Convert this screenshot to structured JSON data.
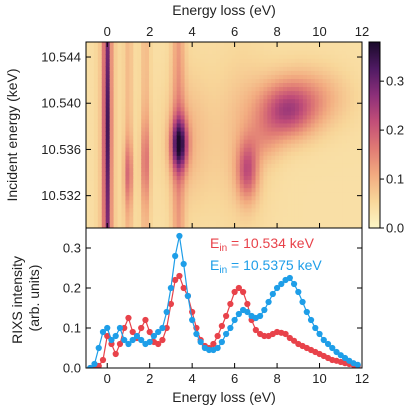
{
  "colors": {
    "series_red": "#e8424a",
    "series_blue": "#1e9ee8",
    "axis": "#000000"
  },
  "chart_data": [
    {
      "type": "heatmap",
      "top_xlabel": "Energy loss (eV)",
      "ylabel": "Incident energy (keV)",
      "xlim": [
        -1,
        12
      ],
      "ylim": [
        10.5292,
        10.5453
      ],
      "x_ticks": [
        "0",
        "2",
        "4",
        "6",
        "8",
        "10",
        "12"
      ],
      "y_ticks": [
        "10.532",
        "10.536",
        "10.540",
        "10.544"
      ],
      "colorbar": {
        "range": [
          0,
          0.38
        ],
        "ticks": [
          "0.0",
          "0.1",
          "0.2",
          "0.3"
        ],
        "colormap": [
          "#fcf6c6",
          "#f8d79a",
          "#f2ab80",
          "#e07a74",
          "#c24e78",
          "#8c2f79",
          "#4f1a63",
          "#1a0a2a"
        ]
      },
      "features": [
        {
          "x": 0.0,
          "y": 10.538,
          "intensity": 0.3
        },
        {
          "x": 1.0,
          "y": 10.534,
          "intensity": 0.13
        },
        {
          "x": 1.8,
          "y": 10.535,
          "intensity": 0.12
        },
        {
          "x": 3.4,
          "y": 10.5365,
          "intensity": 0.37
        },
        {
          "x": 6.6,
          "y": 10.534,
          "intensity": 0.22
        },
        {
          "x": 8.4,
          "y": 10.539,
          "intensity": 0.23
        }
      ]
    },
    {
      "type": "scatter",
      "xlabel": "Energy loss (eV)",
      "ylabel": "RIXS intensity\n(arb. units)",
      "ylabel_lines": [
        "RIXS intensity",
        "(arb. units)"
      ],
      "xlim": [
        -1,
        12
      ],
      "ylim": [
        0,
        0.35
      ],
      "x_ticks": [
        "0",
        "2",
        "4",
        "6",
        "8",
        "10",
        "12"
      ],
      "y_ticks": [
        "0.0",
        "0.1",
        "0.2",
        "0.3"
      ],
      "series": [
        {
          "name": "Ein = 10.534 keV",
          "legend": {
            "base": "E",
            "sub": "in",
            "rest": " = 10.534 keV"
          },
          "color": "#e8424a",
          "x": [
            -0.8,
            -0.6,
            -0.4,
            -0.2,
            0.0,
            0.2,
            0.4,
            0.6,
            0.8,
            1.0,
            1.2,
            1.4,
            1.6,
            1.8,
            2.0,
            2.2,
            2.4,
            2.6,
            2.8,
            3.0,
            3.2,
            3.4,
            3.6,
            3.8,
            4.0,
            4.2,
            4.4,
            4.6,
            4.8,
            5.0,
            5.2,
            5.4,
            5.6,
            5.8,
            6.0,
            6.2,
            6.4,
            6.6,
            6.8,
            7.0,
            7.2,
            7.4,
            7.6,
            7.8,
            8.0,
            8.2,
            8.4,
            8.6,
            8.8,
            9.0,
            9.2,
            9.4,
            9.6,
            9.8,
            10.0,
            10.2,
            10.4,
            10.6,
            10.8,
            11.0,
            11.2,
            11.4,
            11.6,
            11.8
          ],
          "y": [
            0.0,
            0.0,
            0.005,
            0.02,
            0.08,
            0.06,
            0.035,
            0.06,
            0.1,
            0.125,
            0.09,
            0.075,
            0.1,
            0.12,
            0.09,
            0.065,
            0.06,
            0.07,
            0.1,
            0.16,
            0.22,
            0.23,
            0.2,
            0.18,
            0.14,
            0.1,
            0.07,
            0.055,
            0.05,
            0.06,
            0.08,
            0.105,
            0.13,
            0.16,
            0.19,
            0.2,
            0.19,
            0.16,
            0.12,
            0.095,
            0.085,
            0.08,
            0.08,
            0.085,
            0.09,
            0.088,
            0.085,
            0.075,
            0.068,
            0.06,
            0.055,
            0.05,
            0.045,
            0.04,
            0.035,
            0.03,
            0.025,
            0.02,
            0.018,
            0.015,
            0.012,
            0.01,
            0.008,
            0.005
          ]
        },
        {
          "name": "Ein = 10.5375 keV",
          "legend": {
            "base": "E",
            "sub": "in",
            "rest": " = 10.5375 keV"
          },
          "color": "#1e9ee8",
          "x": [
            -0.8,
            -0.6,
            -0.4,
            -0.2,
            0.0,
            0.2,
            0.4,
            0.6,
            0.8,
            1.0,
            1.2,
            1.4,
            1.6,
            1.8,
            2.0,
            2.2,
            2.4,
            2.6,
            2.8,
            3.0,
            3.2,
            3.4,
            3.6,
            3.8,
            4.0,
            4.2,
            4.4,
            4.6,
            4.8,
            5.0,
            5.2,
            5.4,
            5.6,
            5.8,
            6.0,
            6.2,
            6.4,
            6.6,
            6.8,
            7.0,
            7.2,
            7.4,
            7.6,
            7.8,
            8.0,
            8.2,
            8.4,
            8.6,
            8.8,
            9.0,
            9.2,
            9.4,
            9.6,
            9.8,
            10.0,
            10.2,
            10.4,
            10.6,
            10.8,
            11.0,
            11.2,
            11.4,
            11.6,
            11.8
          ],
          "y": [
            0.0,
            0.01,
            0.05,
            0.09,
            0.1,
            0.07,
            0.08,
            0.1,
            0.07,
            0.06,
            0.07,
            0.08,
            0.07,
            0.06,
            0.065,
            0.08,
            0.09,
            0.1,
            0.14,
            0.2,
            0.28,
            0.33,
            0.26,
            0.18,
            0.12,
            0.085,
            0.065,
            0.05,
            0.045,
            0.045,
            0.05,
            0.065,
            0.085,
            0.1,
            0.12,
            0.135,
            0.145,
            0.14,
            0.13,
            0.125,
            0.13,
            0.145,
            0.165,
            0.185,
            0.2,
            0.21,
            0.22,
            0.225,
            0.21,
            0.19,
            0.165,
            0.14,
            0.12,
            0.1,
            0.085,
            0.07,
            0.06,
            0.05,
            0.04,
            0.032,
            0.025,
            0.018,
            0.012,
            0.008
          ]
        }
      ]
    }
  ]
}
